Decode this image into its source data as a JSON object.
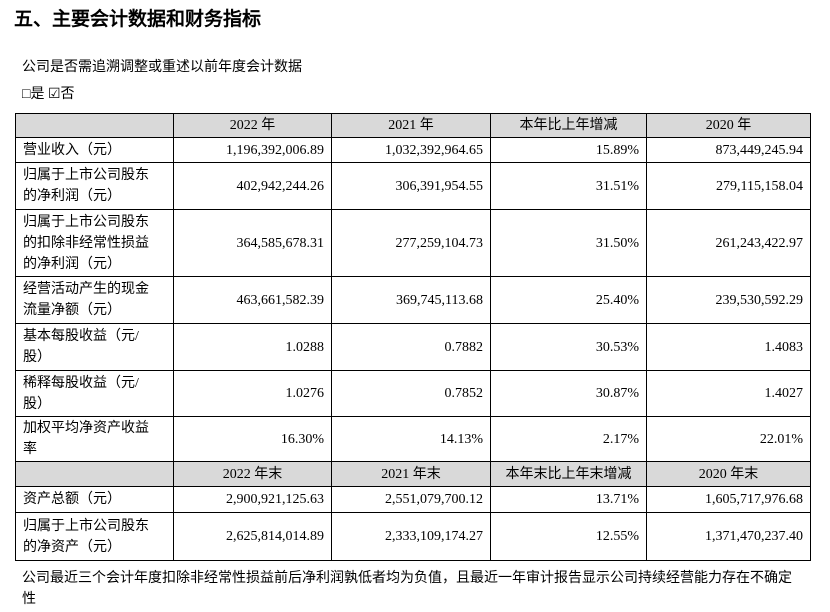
{
  "header": {
    "title": "五、主要会计数据和财务指标"
  },
  "question": "公司是否需追溯调整或重述以前年度会计数据",
  "answer": "□是 ☑否",
  "table": {
    "sections": [
      {
        "header": [
          "",
          "2022 年",
          "2021 年",
          "本年比上年增减",
          "2020 年"
        ],
        "rows": [
          [
            "营业收入（元）",
            "1,196,392,006.89",
            "1,032,392,964.65",
            "15.89%",
            "873,449,245.94"
          ],
          [
            "归属于上市公司股东的净利润（元）",
            "402,942,244.26",
            "306,391,954.55",
            "31.51%",
            "279,115,158.04"
          ],
          [
            "归属于上市公司股东的扣除非经常性损益的净利润（元）",
            "364,585,678.31",
            "277,259,104.73",
            "31.50%",
            "261,243,422.97"
          ],
          [
            "经营活动产生的现金流量净额（元）",
            "463,661,582.39",
            "369,745,113.68",
            "25.40%",
            "239,530,592.29"
          ],
          [
            "基本每股收益（元/股）",
            "1.0288",
            "0.7882",
            "30.53%",
            "1.4083"
          ],
          [
            "稀释每股收益（元/股）",
            "1.0276",
            "0.7852",
            "30.87%",
            "1.4027"
          ],
          [
            "加权平均净资产收益率",
            "16.30%",
            "14.13%",
            "2.17%",
            "22.01%"
          ]
        ]
      },
      {
        "header": [
          "",
          "2022 年末",
          "2021 年末",
          "本年末比上年末增减",
          "2020 年末"
        ],
        "rows": [
          [
            "资产总额（元）",
            "2,900,921,125.63",
            "2,551,079,700.12",
            "13.71%",
            "1,605,717,976.68"
          ],
          [
            "归属于上市公司股东的净资产（元）",
            "2,625,814,014.89",
            "2,333,109,174.27",
            "12.55%",
            "1,371,470,237.40"
          ]
        ]
      }
    ]
  },
  "footnote": "公司最近三个会计年度扣除非经常性损益前后净利润孰低者均为负值，且最近一年审计报告显示公司持续经营能力存在不确定性"
}
